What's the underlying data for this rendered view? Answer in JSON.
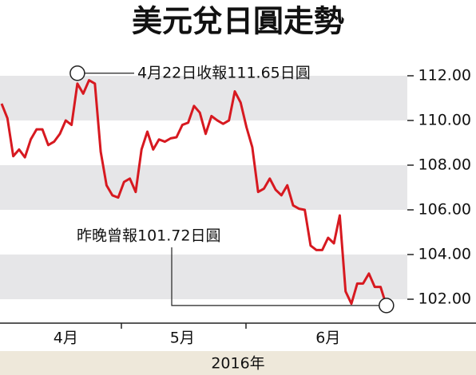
{
  "chart_data": {
    "type": "line",
    "title": "美元兌日圓走勢",
    "x_label": "2016年",
    "categories": [
      null,
      null,
      null,
      null,
      null,
      null,
      null,
      null,
      null,
      null,
      null,
      "4月",
      null,
      null,
      null,
      null,
      null,
      null,
      null,
      null,
      null,
      null,
      null,
      null,
      null,
      null,
      null,
      null,
      null,
      null,
      null,
      "5月",
      null,
      null,
      null,
      null,
      null,
      null,
      null,
      null,
      null,
      null,
      null,
      null,
      null,
      null,
      null,
      null,
      null,
      null,
      null,
      null,
      null,
      null,
      null,
      null,
      "6月",
      null,
      null,
      null,
      null,
      null,
      null,
      null,
      null,
      null,
      null
    ],
    "series": [
      {
        "name": "美元兌日圓",
        "color": "#d71920",
        "values": [
          110.75,
          110.1,
          108.4,
          108.7,
          108.35,
          109.15,
          109.6,
          109.6,
          108.9,
          109.05,
          109.4,
          110.0,
          109.8,
          111.65,
          111.2,
          111.8,
          111.65,
          108.6,
          107.1,
          106.65,
          106.55,
          107.25,
          107.4,
          106.8,
          108.7,
          109.5,
          108.7,
          109.15,
          109.05,
          109.2,
          109.25,
          109.8,
          109.9,
          110.65,
          110.35,
          109.4,
          110.2,
          110.0,
          109.85,
          110.0,
          111.3,
          110.8,
          109.7,
          108.8,
          106.8,
          106.95,
          107.4,
          106.9,
          106.65,
          107.1,
          106.2,
          106.05,
          106.0,
          104.4,
          104.2,
          104.2,
          104.75,
          104.5,
          105.75,
          102.35,
          101.8,
          102.7,
          102.7,
          103.15,
          102.55,
          102.55,
          101.72
        ]
      }
    ],
    "annotations": [
      "4月22日收報111.65日圓",
      "昨晚曾報101.72日圓"
    ],
    "ylim": [
      100.93,
      113.07
    ],
    "yticks": [
      {
        "value": 102,
        "label": "102.00"
      },
      {
        "value": 104,
        "label": "104.00"
      },
      {
        "value": 106,
        "label": "106.00"
      },
      {
        "value": 108,
        "label": "108.00"
      },
      {
        "value": 110,
        "label": "110.00"
      },
      {
        "value": 112,
        "label": "112.00"
      }
    ],
    "grid": true
  }
}
